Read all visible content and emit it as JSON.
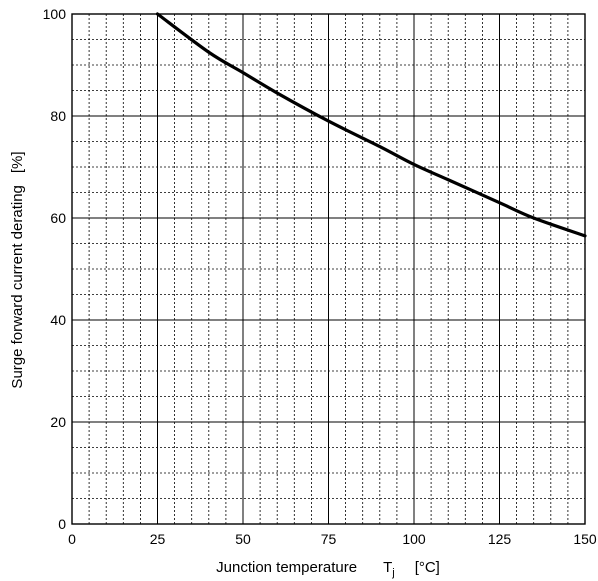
{
  "chart_data": {
    "type": "line",
    "title": "",
    "xlabel": "Junction temperature",
    "xlabel_symbol": "T",
    "xlabel_subscript": "j",
    "xlabel_unit": "[°C]",
    "ylabel": "Surge forward current derating",
    "ylabel_unit": "[%]",
    "xlim": [
      0,
      150
    ],
    "ylim": [
      0,
      100
    ],
    "x_ticks": [
      0,
      25,
      50,
      75,
      100,
      125,
      150
    ],
    "y_ticks": [
      0,
      20,
      40,
      60,
      80,
      100
    ],
    "grid": true,
    "x_minor_step": 5,
    "y_minor_step": 5,
    "series": [
      {
        "x": [
          25,
          40,
          50,
          60,
          75,
          90,
          100,
          110,
          125,
          135,
          150
        ],
        "y": [
          100,
          92.5,
          88.5,
          84.5,
          79.0,
          74.0,
          70.5,
          67.5,
          63.0,
          60.0,
          56.5
        ]
      }
    ]
  }
}
